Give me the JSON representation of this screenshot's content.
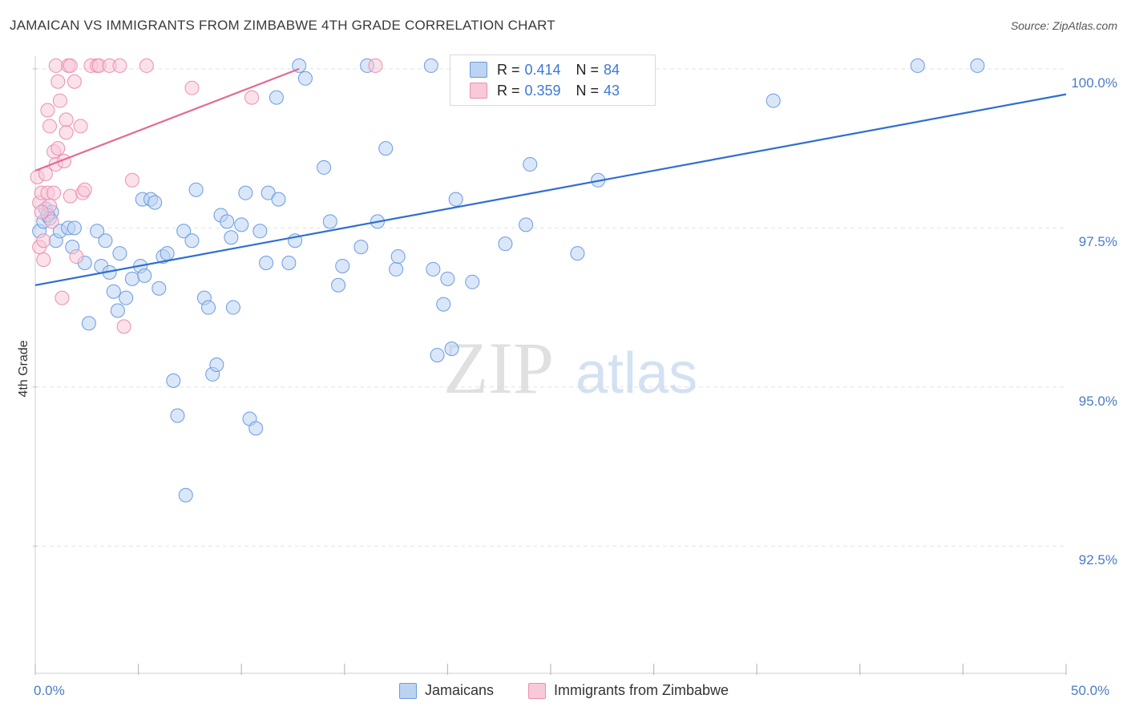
{
  "title": "JAMAICAN VS IMMIGRANTS FROM ZIMBABWE 4TH GRADE CORRELATION CHART",
  "source": "Source: ZipAtlas.com",
  "watermark": {
    "zip": "ZIP",
    "atlas": "atlas"
  },
  "colors": {
    "blue_fill": "#bcd3f2",
    "blue_stroke": "#6b9be0",
    "blue_line": "#2f6fd0",
    "pink_fill": "#f8c9d8",
    "pink_stroke": "#ea8fb0",
    "pink_line": "#e26a95",
    "tick_text": "#4a7cc7",
    "grid": "#e3e3e3"
  },
  "legend": {
    "rows": [
      {
        "series": "Jamaicans",
        "r_label": "R =",
        "r_value": "0.414",
        "n_label": "N =",
        "n_value": "84"
      },
      {
        "series": "Immigrants from Zimbabwe",
        "r_label": "R =",
        "r_value": "0.359",
        "n_label": "N =",
        "n_value": "43"
      }
    ]
  },
  "bottom_legend": [
    "Jamaicans",
    "Immigrants from Zimbabwe"
  ],
  "chart_data": {
    "type": "scatter",
    "title": "JAMAICAN VS IMMIGRANTS FROM ZIMBABWE 4TH GRADE CORRELATION CHART",
    "xlabel": "",
    "ylabel": "4th Grade",
    "xlim": [
      0,
      50
    ],
    "ylim": [
      90.5,
      100.2
    ],
    "x_tick_labels": [
      "0.0%",
      "50.0%"
    ],
    "y_ticks": [
      92.5,
      95.0,
      97.5,
      100.0
    ],
    "y_tick_labels": [
      "92.5%",
      "95.0%",
      "97.5%",
      "100.0%"
    ],
    "grid": true,
    "series": [
      {
        "name": "Jamaicans",
        "R": 0.414,
        "N": 84,
        "trend": {
          "x": [
            0,
            50
          ],
          "y": [
            96.6,
            99.6
          ]
        },
        "points": [
          [
            0.2,
            97.45
          ],
          [
            0.4,
            97.6
          ],
          [
            0.5,
            97.8
          ],
          [
            0.7,
            97.65
          ],
          [
            0.8,
            97.75
          ],
          [
            1.0,
            97.3
          ],
          [
            1.2,
            97.45
          ],
          [
            1.6,
            97.5
          ],
          [
            1.9,
            97.5
          ],
          [
            1.8,
            97.2
          ],
          [
            2.4,
            96.95
          ],
          [
            2.6,
            96.0
          ],
          [
            3.0,
            97.45
          ],
          [
            3.2,
            96.9
          ],
          [
            3.4,
            97.3
          ],
          [
            3.6,
            96.8
          ],
          [
            3.8,
            96.5
          ],
          [
            4.0,
            96.2
          ],
          [
            4.1,
            97.1
          ],
          [
            4.4,
            96.4
          ],
          [
            4.7,
            96.7
          ],
          [
            5.1,
            96.9
          ],
          [
            5.2,
            97.95
          ],
          [
            5.3,
            96.75
          ],
          [
            5.6,
            97.95
          ],
          [
            5.8,
            97.9
          ],
          [
            6.0,
            96.55
          ],
          [
            6.2,
            97.05
          ],
          [
            6.4,
            97.1
          ],
          [
            6.7,
            95.1
          ],
          [
            6.9,
            94.55
          ],
          [
            7.2,
            97.45
          ],
          [
            7.3,
            93.3
          ],
          [
            7.6,
            97.3
          ],
          [
            7.8,
            98.1
          ],
          [
            8.2,
            96.4
          ],
          [
            8.4,
            96.25
          ],
          [
            8.6,
            95.2
          ],
          [
            8.8,
            95.35
          ],
          [
            9.0,
            97.7
          ],
          [
            9.3,
            97.6
          ],
          [
            9.5,
            97.35
          ],
          [
            9.6,
            96.25
          ],
          [
            10.0,
            97.55
          ],
          [
            10.2,
            98.05
          ],
          [
            10.4,
            94.5
          ],
          [
            10.7,
            94.35
          ],
          [
            10.9,
            97.45
          ],
          [
            11.2,
            96.95
          ],
          [
            11.3,
            98.05
          ],
          [
            11.7,
            99.55
          ],
          [
            11.8,
            97.95
          ],
          [
            12.3,
            96.95
          ],
          [
            12.6,
            97.3
          ],
          [
            12.8,
            100.05
          ],
          [
            13.1,
            99.85
          ],
          [
            14.0,
            98.45
          ],
          [
            14.3,
            97.6
          ],
          [
            14.7,
            96.6
          ],
          [
            14.9,
            96.9
          ],
          [
            15.8,
            97.2
          ],
          [
            16.1,
            100.05
          ],
          [
            16.6,
            97.6
          ],
          [
            17.0,
            98.75
          ],
          [
            17.5,
            96.85
          ],
          [
            17.6,
            97.05
          ],
          [
            19.2,
            100.05
          ],
          [
            19.3,
            96.85
          ],
          [
            19.5,
            95.5
          ],
          [
            19.8,
            96.3
          ],
          [
            20.0,
            96.7
          ],
          [
            20.2,
            95.6
          ],
          [
            20.4,
            97.95
          ],
          [
            21.2,
            96.65
          ],
          [
            22.8,
            97.25
          ],
          [
            23.8,
            97.55
          ],
          [
            24.0,
            98.5
          ],
          [
            26.3,
            97.1
          ],
          [
            26.5,
            100.05
          ],
          [
            27.3,
            98.25
          ],
          [
            35.8,
            99.5
          ],
          [
            42.8,
            100.05
          ],
          [
            45.7,
            100.05
          ],
          [
            0.6,
            97.7
          ]
        ]
      },
      {
        "name": "Immigrants from Zimbabwe",
        "R": 0.359,
        "N": 43,
        "trend": {
          "x": [
            0,
            12.8
          ],
          "y": [
            98.4,
            100.0
          ]
        },
        "points": [
          [
            0.1,
            98.3
          ],
          [
            0.2,
            97.9
          ],
          [
            0.2,
            97.2
          ],
          [
            0.3,
            98.05
          ],
          [
            0.4,
            97.3
          ],
          [
            0.4,
            97.0
          ],
          [
            0.5,
            98.35
          ],
          [
            0.6,
            99.35
          ],
          [
            0.6,
            98.05
          ],
          [
            0.7,
            97.85
          ],
          [
            0.7,
            99.1
          ],
          [
            0.8,
            97.6
          ],
          [
            0.9,
            98.05
          ],
          [
            0.9,
            98.7
          ],
          [
            1.0,
            98.5
          ],
          [
            1.0,
            100.05
          ],
          [
            1.1,
            98.75
          ],
          [
            1.1,
            99.8
          ],
          [
            1.2,
            99.5
          ],
          [
            1.3,
            96.4
          ],
          [
            1.4,
            98.55
          ],
          [
            1.5,
            99.2
          ],
          [
            1.6,
            100.05
          ],
          [
            1.5,
            99.0
          ],
          [
            1.7,
            100.05
          ],
          [
            1.7,
            98.0
          ],
          [
            1.9,
            99.8
          ],
          [
            2.0,
            97.05
          ],
          [
            2.2,
            99.1
          ],
          [
            2.3,
            98.05
          ],
          [
            2.4,
            98.1
          ],
          [
            2.7,
            100.05
          ],
          [
            3.0,
            100.05
          ],
          [
            3.1,
            100.05
          ],
          [
            3.6,
            100.05
          ],
          [
            4.1,
            100.05
          ],
          [
            4.3,
            95.95
          ],
          [
            4.7,
            98.25
          ],
          [
            5.4,
            100.05
          ],
          [
            7.6,
            99.7
          ],
          [
            10.5,
            99.55
          ],
          [
            16.5,
            100.05
          ],
          [
            0.3,
            97.75
          ]
        ]
      }
    ]
  }
}
